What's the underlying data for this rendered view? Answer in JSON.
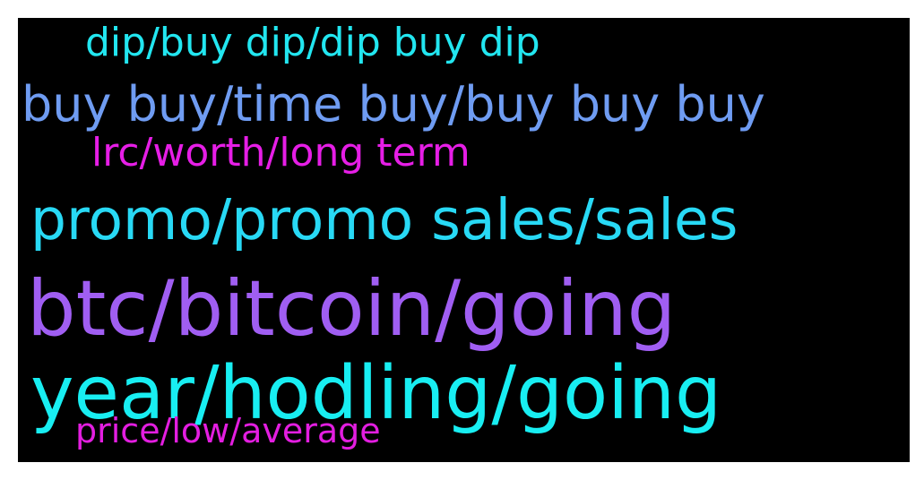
{
  "word_cloud": {
    "background": "#000000",
    "words": [
      {
        "text": "dip/buy dip/dip buy dip",
        "color": "#22e6f0"
      },
      {
        "text": "buy buy/time buy/buy buy buy",
        "color": "#6f9cf2"
      },
      {
        "text": "lrc/worth/long term",
        "color": "#e61ee6"
      },
      {
        "text": "promo/promo sales/sales",
        "color": "#28d9f5"
      },
      {
        "text": "btc/bitcoin/going",
        "color": "#a05ef2"
      },
      {
        "text": "year/hodling/going",
        "color": "#18eef2"
      },
      {
        "text": "price/low/average",
        "color": "#e31ee0"
      }
    ]
  }
}
